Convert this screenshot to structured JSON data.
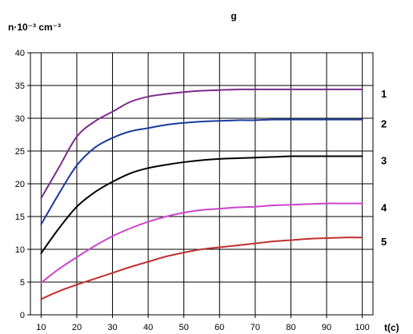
{
  "chart_data": {
    "type": "line",
    "title": "g",
    "ylabel": "n·10⁻³ cm⁻³",
    "xlabel": "t(c)",
    "xlim": [
      7,
      103
    ],
    "ylim": [
      0,
      40
    ],
    "x_ticks": [
      10,
      20,
      30,
      40,
      50,
      60,
      70,
      80,
      90,
      100
    ],
    "y_ticks": [
      0,
      5,
      10,
      15,
      20,
      25,
      30,
      35,
      40
    ],
    "grid": true,
    "x": [
      10,
      15,
      20,
      25,
      30,
      35,
      40,
      45,
      50,
      55,
      60,
      65,
      70,
      75,
      80,
      85,
      90,
      95,
      100
    ],
    "series": [
      {
        "name": "1",
        "color": "#7b2b8a",
        "values": [
          17.8,
          22.5,
          27.2,
          29.5,
          31.0,
          32.5,
          33.3,
          33.7,
          34.0,
          34.2,
          34.3,
          34.4,
          34.4,
          34.4,
          34.4,
          34.4,
          34.4,
          34.4,
          34.4
        ]
      },
      {
        "name": "2",
        "color": "#1a3a9c",
        "values": [
          13.8,
          18.5,
          22.8,
          25.5,
          27.0,
          28.0,
          28.5,
          29.0,
          29.3,
          29.5,
          29.6,
          29.7,
          29.7,
          29.8,
          29.8,
          29.8,
          29.8,
          29.8,
          29.8
        ]
      },
      {
        "name": "3",
        "color": "#000000",
        "values": [
          9.4,
          13.2,
          16.5,
          18.7,
          20.3,
          21.6,
          22.4,
          22.9,
          23.3,
          23.6,
          23.8,
          23.9,
          24.0,
          24.1,
          24.2,
          24.2,
          24.2,
          24.2,
          24.2
        ]
      },
      {
        "name": "4",
        "color": "#cc44cc",
        "values": [
          4.9,
          7.0,
          8.8,
          10.5,
          12.0,
          13.2,
          14.2,
          15.0,
          15.6,
          16.0,
          16.2,
          16.4,
          16.5,
          16.7,
          16.8,
          16.9,
          17.0,
          17.0,
          17.0
        ]
      },
      {
        "name": "5",
        "color": "#c03030",
        "values": [
          2.4,
          3.6,
          4.6,
          5.5,
          6.4,
          7.3,
          8.1,
          8.9,
          9.5,
          10.0,
          10.3,
          10.6,
          10.9,
          11.2,
          11.4,
          11.6,
          11.7,
          11.8,
          11.8
        ]
      }
    ]
  }
}
